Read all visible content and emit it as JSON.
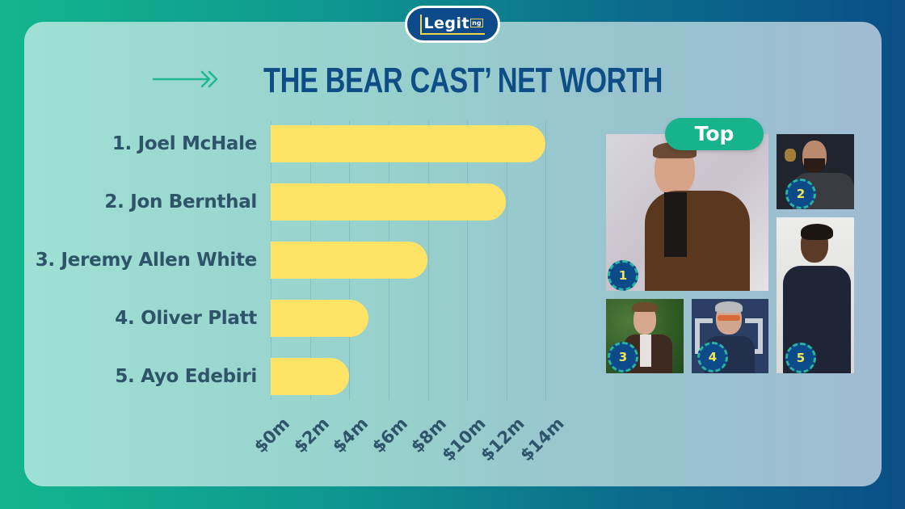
{
  "brand": {
    "logo_text": "Legit",
    "logo_suffix": "ng"
  },
  "header": {
    "title": "THE BEAR CAST’ NET WORTH",
    "arrow_icon": "double-chevron-arrow-right"
  },
  "chart_data": {
    "type": "bar",
    "orientation": "horizontal",
    "title": "THE BEAR CAST’ NET WORTH",
    "categories": [
      "1. Joel McHale",
      "2. Jon Bernthal",
      "3. Jeremy Allen White",
      "4. Oliver Platt",
      "5. Ayo Edebiri"
    ],
    "values": [
      14,
      12,
      8,
      5,
      4
    ],
    "unit": "$ millions",
    "xlabel": "",
    "ylabel": "",
    "xlim": [
      0,
      14
    ],
    "x_ticks": [
      "$0m",
      "$2m",
      "$4m",
      "$6m",
      "$8m",
      "$10m",
      "$12m",
      "$14m"
    ],
    "grid": true,
    "bar_color": "#fee367",
    "legend": null
  },
  "gallery": {
    "top_label": "Top",
    "photos": [
      {
        "rank": "1",
        "name": "Joel McHale"
      },
      {
        "rank": "2",
        "name": "Jon Bernthal"
      },
      {
        "rank": "3",
        "name": "Jeremy Allen White"
      },
      {
        "rank": "4",
        "name": "Oliver Platt"
      },
      {
        "rank": "5",
        "name": "Ayo Edebiri"
      }
    ]
  },
  "colors": {
    "title": "#0e4d86",
    "label": "#2d5468",
    "bar": "#fee367",
    "accent": "#17b38c",
    "badge": "#0d4a8a",
    "badge_text": "#f2e45a"
  }
}
